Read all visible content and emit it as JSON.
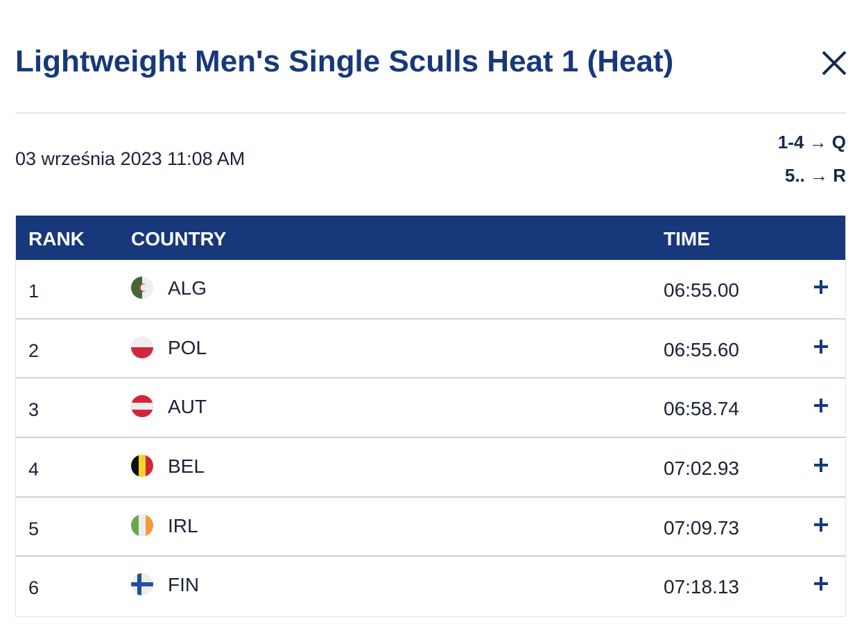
{
  "header": {
    "title": "Lightweight Men's Single Sculls Heat 1 (Heat)"
  },
  "date": "03 września 2023 11:08 AM",
  "progression": [
    "1-4 → Q",
    "5.. → R"
  ],
  "table": {
    "columns": [
      "RANK",
      "COUNTRY",
      "TIME"
    ],
    "rows": [
      [
        1,
        "ALG",
        "06:55.00"
      ],
      [
        2,
        "POL",
        "06:55.60"
      ],
      [
        3,
        "AUT",
        "06:58.74"
      ],
      [
        4,
        "BEL",
        "07:02.93"
      ],
      [
        5,
        "IRL",
        "07:09.73"
      ],
      [
        6,
        "FIN",
        "07:18.13"
      ]
    ]
  }
}
